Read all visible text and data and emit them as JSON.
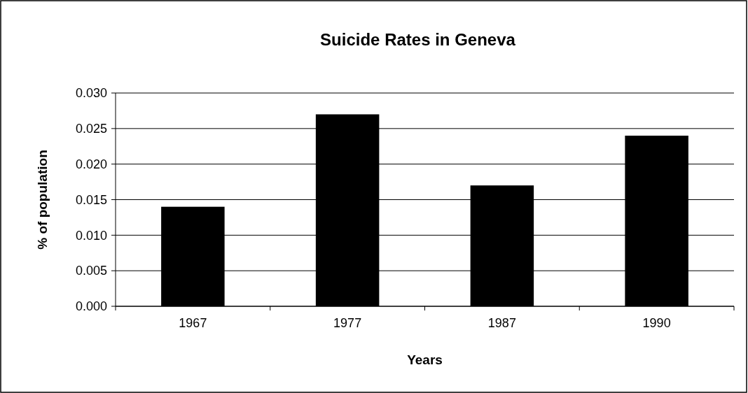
{
  "chart_data": {
    "type": "bar",
    "title": "Suicide Rates in Geneva",
    "xlabel": "Years",
    "ylabel": "% of population",
    "categories": [
      "1967",
      "1977",
      "1987",
      "1990"
    ],
    "values": [
      0.014,
      0.027,
      0.017,
      0.024
    ],
    "color": "#000000",
    "ylim": [
      0,
      0.03
    ],
    "yticks": [
      {
        "value": 0,
        "label": "0.000"
      },
      {
        "value": 0.005,
        "label": "0.005"
      },
      {
        "value": 0.01,
        "label": "0.010"
      },
      {
        "value": 0.015,
        "label": "0.015"
      },
      {
        "value": 0.02,
        "label": "0.020"
      },
      {
        "value": 0.025,
        "label": "0.025"
      },
      {
        "value": 0.03,
        "label": "0.030"
      }
    ],
    "grid": "y"
  }
}
